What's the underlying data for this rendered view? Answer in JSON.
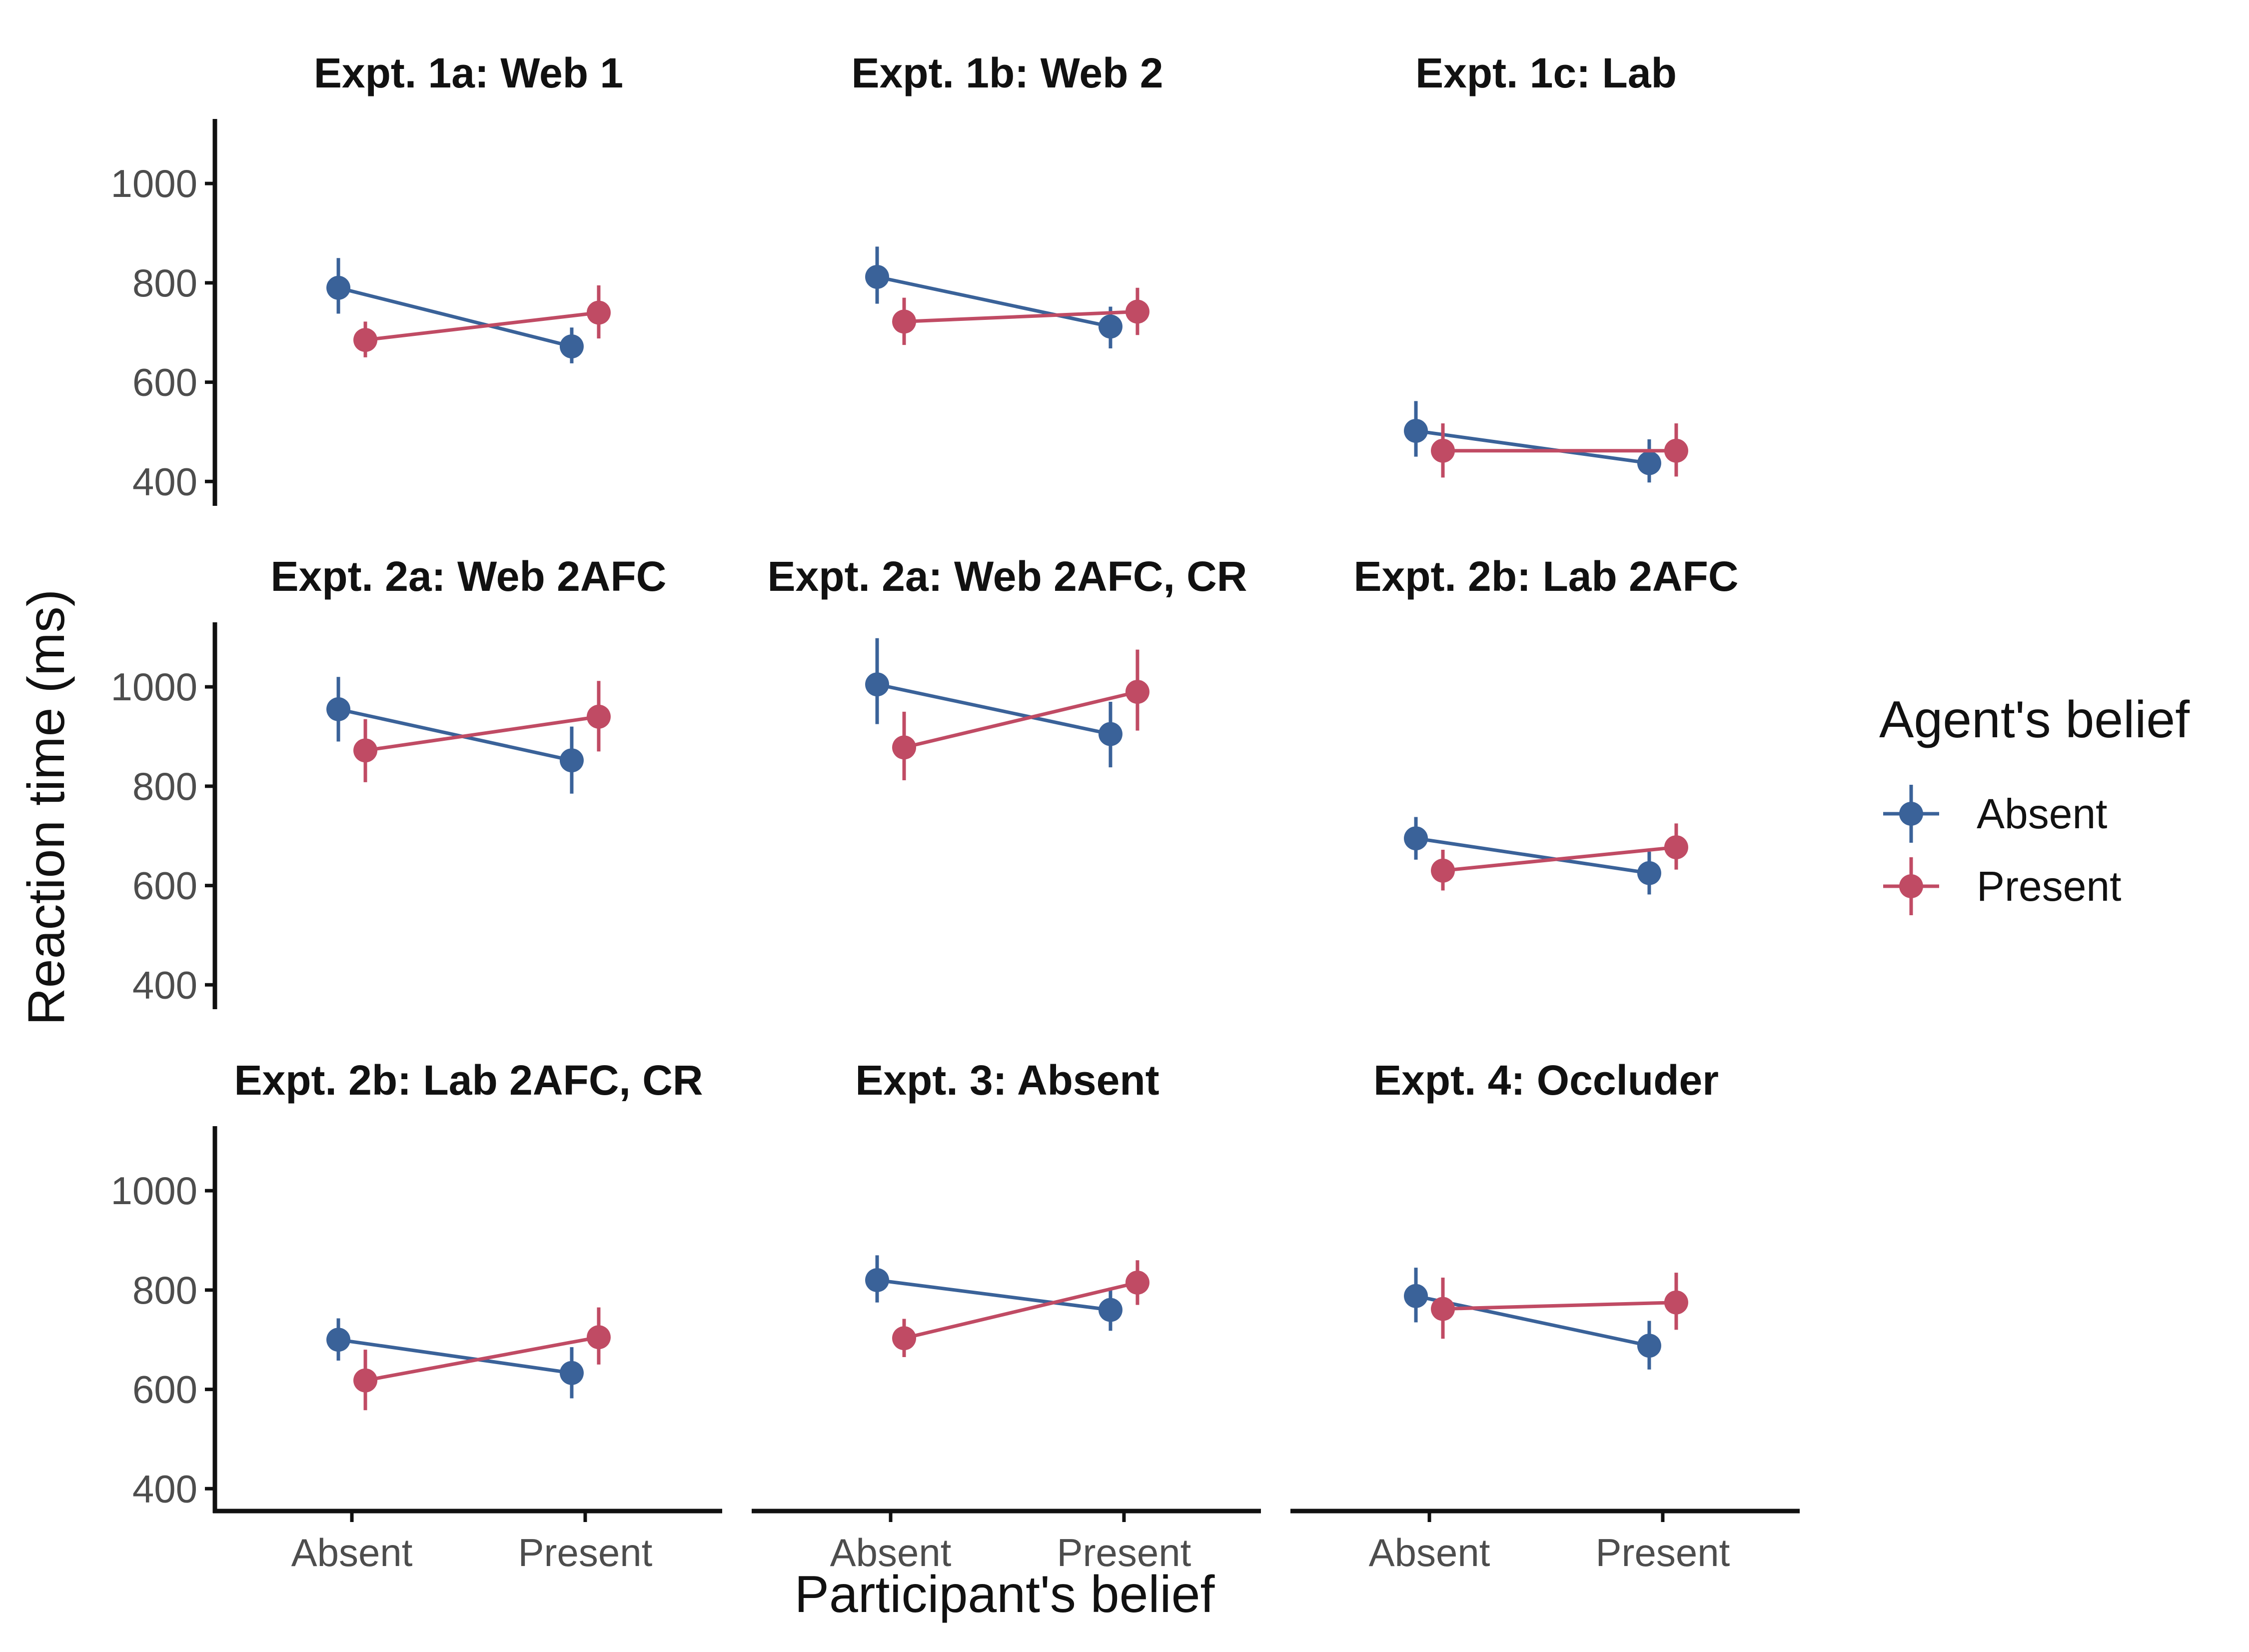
{
  "chart_data": {
    "type": "line",
    "title": "",
    "xlabel": "Participant's belief",
    "ylabel": "Reaction time (ms)",
    "ylim": [
      355,
      1130
    ],
    "yticks": [
      400,
      600,
      800,
      1000
    ],
    "categories": [
      "Absent",
      "Present"
    ],
    "grid": false,
    "legend": {
      "title": "Agent's belief",
      "position": "right",
      "entries": [
        "Absent",
        "Present"
      ]
    },
    "colors": {
      "Absent": "#3A6299",
      "Present": "#C04B64"
    },
    "panels": [
      {
        "title": "Expt. 1a: Web 1",
        "series": [
          {
            "name": "Absent",
            "values": [
              790,
              672
            ],
            "lower": [
              738,
              638
            ],
            "upper": [
              850,
              710
            ]
          },
          {
            "name": "Present",
            "values": [
              685,
              740
            ],
            "lower": [
              650,
              688
            ],
            "upper": [
              722,
              795
            ]
          }
        ]
      },
      {
        "title": "Expt. 1b: Web 2",
        "series": [
          {
            "name": "Absent",
            "values": [
              812,
              712
            ],
            "lower": [
              758,
              668
            ],
            "upper": [
              873,
              752
            ]
          },
          {
            "name": "Present",
            "values": [
              722,
              742
            ],
            "lower": [
              675,
              695
            ],
            "upper": [
              770,
              790
            ]
          }
        ]
      },
      {
        "title": "Expt. 1c: Lab",
        "series": [
          {
            "name": "Absent",
            "values": [
              502,
              437
            ],
            "lower": [
              450,
              398
            ],
            "upper": [
              562,
              485
            ]
          },
          {
            "name": "Present",
            "values": [
              462,
              462
            ],
            "lower": [
              408,
              410
            ],
            "upper": [
              517,
              517
            ]
          }
        ]
      },
      {
        "title": "Expt. 2a: Web 2AFC",
        "series": [
          {
            "name": "Absent",
            "values": [
              955,
              852
            ],
            "lower": [
              890,
              785
            ],
            "upper": [
              1020,
              920
            ]
          },
          {
            "name": "Present",
            "values": [
              872,
              940
            ],
            "lower": [
              808,
              870
            ],
            "upper": [
              935,
              1012
            ]
          }
        ]
      },
      {
        "title": "Expt. 2a: Web 2AFC, CR",
        "series": [
          {
            "name": "Absent",
            "values": [
              1005,
              905
            ],
            "lower": [
              925,
              838
            ],
            "upper": [
              1098,
              970
            ]
          },
          {
            "name": "Present",
            "values": [
              878,
              990
            ],
            "lower": [
              812,
              912
            ],
            "upper": [
              950,
              1075
            ]
          }
        ]
      },
      {
        "title": "Expt. 2b: Lab 2AFC",
        "series": [
          {
            "name": "Absent",
            "values": [
              695,
              625
            ],
            "lower": [
              652,
              582
            ],
            "upper": [
              738,
              668
            ]
          },
          {
            "name": "Present",
            "values": [
              630,
              677
            ],
            "lower": [
              590,
              632
            ],
            "upper": [
              672,
              725
            ]
          }
        ]
      },
      {
        "title": "Expt. 2b: Lab 2AFC, CR",
        "series": [
          {
            "name": "Absent",
            "values": [
              700,
              633
            ],
            "lower": [
              658,
              582
            ],
            "upper": [
              743,
              685
            ]
          },
          {
            "name": "Present",
            "values": [
              618,
              705
            ],
            "lower": [
              558,
              650
            ],
            "upper": [
              680,
              765
            ]
          }
        ]
      },
      {
        "title": "Expt. 3: Absent",
        "series": [
          {
            "name": "Absent",
            "values": [
              820,
              760
            ],
            "lower": [
              775,
              718
            ],
            "upper": [
              870,
              805
            ]
          },
          {
            "name": "Present",
            "values": [
              703,
              815
            ],
            "lower": [
              665,
              770
            ],
            "upper": [
              742,
              860
            ]
          }
        ]
      },
      {
        "title": "Expt. 4: Occluder",
        "series": [
          {
            "name": "Absent",
            "values": [
              788,
              688
            ],
            "lower": [
              735,
              640
            ],
            "upper": [
              845,
              738
            ]
          },
          {
            "name": "Present",
            "values": [
              762,
              775
            ],
            "lower": [
              702,
              720
            ],
            "upper": [
              825,
              835
            ]
          }
        ]
      }
    ]
  }
}
